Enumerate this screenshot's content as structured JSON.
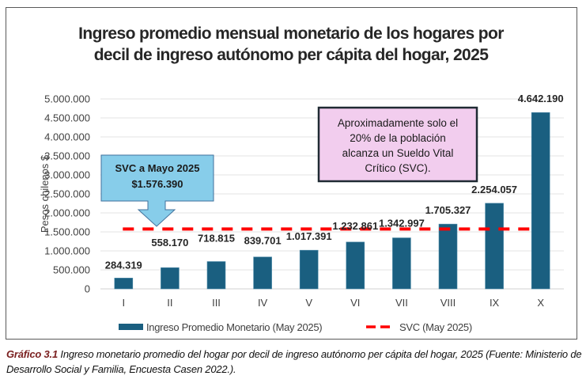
{
  "chart_data": {
    "type": "bar",
    "title_lines": [
      "Ingreso promedio mensual monetario de los hogares por",
      "decil de ingreso autónomo per cápita del hogar, 2025"
    ],
    "xlabel": "",
    "ylabel": "Pesos chilenos $",
    "ylim": [
      0,
      5000000
    ],
    "yticks": [
      0,
      500000,
      1000000,
      1500000,
      2000000,
      2500000,
      3000000,
      3500000,
      4000000,
      4500000,
      5000000
    ],
    "ytick_labels": [
      "0",
      "500.000",
      "1.000.000",
      "1.500.000",
      "2.000.000",
      "2.500.000",
      "3.000.000",
      "3.500.000",
      "4.000.000",
      "4.500.000",
      "5.000.000"
    ],
    "grid": true,
    "categories": [
      "I",
      "II",
      "III",
      "IV",
      "V",
      "VI",
      "VII",
      "VIII",
      "IX",
      "X"
    ],
    "series": [
      {
        "name": "Ingreso Promedio Monetario (May 2025)",
        "type": "bar",
        "color": "#1a5f80",
        "values": [
          284319,
          558170,
          718815,
          839701,
          1017391,
          1232861,
          1342997,
          1705327,
          2254057,
          4642190
        ],
        "labels": [
          "284.319",
          "558.170",
          "718.815",
          "839.701",
          "1.017.391",
          "1.232.861",
          "1.342.997",
          "1.705.327",
          "2.254.057",
          "4.642.190"
        ]
      },
      {
        "name": "SVC (May 2025)",
        "type": "line",
        "style": "dashed",
        "color": "#ff0000",
        "value": 1576390
      }
    ],
    "legend": {
      "position": "bottom",
      "entries": [
        "Ingreso Promedio Monetario (May 2025)",
        "SVC (May 2025)"
      ]
    },
    "annotations": {
      "svc_callout": {
        "lines": [
          "SVC a Mayo 2025",
          "$1.576.390"
        ],
        "fill": "#87cdea",
        "points_to": "SVC line"
      },
      "note_box": {
        "lines": [
          "Aproximadamente  solo el",
          "20% de la población",
          "alcanza  un Sueldo Vital",
          "Crítico (SVC)."
        ],
        "fill": "#f2cdee"
      }
    }
  },
  "caption": {
    "label": "Gráfico 3.1",
    "text": " Ingreso monetario promedio del hogar por decil de ingreso autónomo per cápita del hogar, 2025 (Fuente: Ministerio de Desarrollo Social y Familia, Encuesta Casen 2022.)."
  }
}
